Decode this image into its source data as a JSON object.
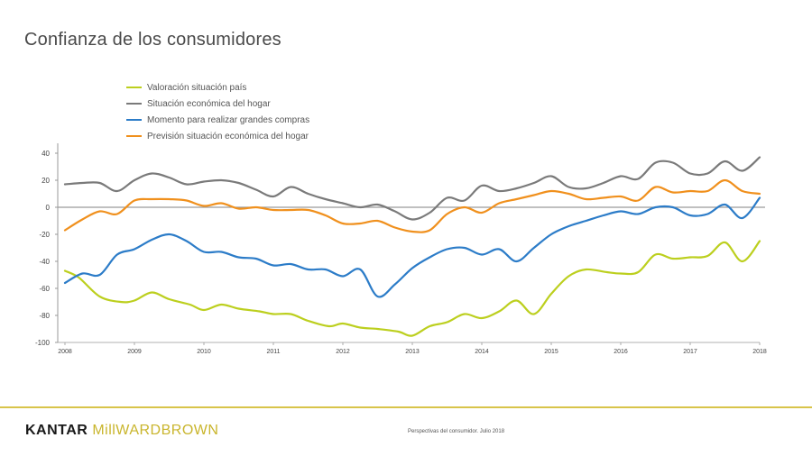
{
  "page": {
    "title": "Confianza de los consumidores"
  },
  "colors": {
    "series": [
      "#bccf1e",
      "#7a7a7a",
      "#2c7cc8",
      "#f0901d"
    ],
    "axis": "#999999",
    "tick_text": "#444444",
    "footer_line": "#d8c44a"
  },
  "chart_data": {
    "type": "line",
    "title": "Confianza de los consumidores",
    "xlabel": "",
    "ylabel": "",
    "xlim": [
      2008,
      2018
    ],
    "ylim": [
      -100,
      50
    ],
    "yticks": [
      -100,
      -80,
      -60,
      -40,
      -20,
      0,
      20,
      40
    ],
    "ytick_labels": [
      "-100",
      "-80",
      "-60",
      "-40",
      "-20",
      "0",
      "20",
      "40"
    ],
    "xticks": [
      2008,
      2009,
      2010,
      2011,
      2012,
      2013,
      2014,
      2015,
      2016,
      2017,
      2018
    ],
    "xtick_labels": [
      "2008",
      "2009",
      "2010",
      "2011",
      "2012",
      "2013",
      "2014",
      "2015",
      "2016",
      "2017",
      "2018"
    ],
    "legend_position": "top-left",
    "series": [
      {
        "name": "Valoración situación país",
        "x": [
          2008.0,
          2008.2,
          2008.5,
          2008.8,
          2009.0,
          2009.25,
          2009.5,
          2009.8,
          2010.0,
          2010.25,
          2010.5,
          2010.8,
          2011.0,
          2011.25,
          2011.5,
          2011.8,
          2012.0,
          2012.25,
          2012.5,
          2012.8,
          2013.0,
          2013.25,
          2013.5,
          2013.75,
          2014.0,
          2014.25,
          2014.5,
          2014.75,
          2015.0,
          2015.25,
          2015.5,
          2015.8,
          2016.0,
          2016.25,
          2016.5,
          2016.75,
          2017.0,
          2017.25,
          2017.5,
          2017.75,
          2018.0
        ],
        "values": [
          -47,
          -52,
          -66,
          -70,
          -69,
          -63,
          -68,
          -72,
          -76,
          -72,
          -75,
          -77,
          -79,
          -79,
          -84,
          -88,
          -86,
          -89,
          -90,
          -92,
          -95,
          -88,
          -85,
          -79,
          -82,
          -77,
          -69,
          -79,
          -64,
          -51,
          -46,
          -48,
          -49,
          -48,
          -35,
          -38,
          -37,
          -36,
          -26,
          -40,
          -25
        ]
      },
      {
        "name": "Situación económica del hogar",
        "x": [
          2008.0,
          2008.25,
          2008.5,
          2008.75,
          2009.0,
          2009.25,
          2009.5,
          2009.75,
          2010.0,
          2010.25,
          2010.5,
          2010.75,
          2011.0,
          2011.25,
          2011.5,
          2011.75,
          2012.0,
          2012.25,
          2012.5,
          2012.75,
          2013.0,
          2013.25,
          2013.5,
          2013.75,
          2014.0,
          2014.25,
          2014.5,
          2014.75,
          2015.0,
          2015.25,
          2015.5,
          2015.75,
          2016.0,
          2016.25,
          2016.5,
          2016.75,
          2017.0,
          2017.25,
          2017.5,
          2017.75,
          2018.0
        ],
        "values": [
          17,
          18,
          18,
          12,
          20,
          25,
          22,
          17,
          19,
          20,
          18,
          13,
          8,
          15,
          10,
          6,
          3,
          0,
          2,
          -3,
          -9,
          -4,
          7,
          5,
          16,
          12,
          14,
          18,
          23,
          15,
          14,
          18,
          23,
          21,
          33,
          33,
          25,
          25,
          34,
          27,
          37
        ]
      },
      {
        "name": "Momento para realizar grandes compras",
        "x": [
          2008.0,
          2008.25,
          2008.5,
          2008.75,
          2009.0,
          2009.25,
          2009.5,
          2009.75,
          2010.0,
          2010.25,
          2010.5,
          2010.75,
          2011.0,
          2011.25,
          2011.5,
          2011.75,
          2012.0,
          2012.25,
          2012.5,
          2012.75,
          2013.0,
          2013.25,
          2013.5,
          2013.75,
          2014.0,
          2014.25,
          2014.5,
          2014.75,
          2015.0,
          2015.25,
          2015.5,
          2015.75,
          2016.0,
          2016.25,
          2016.5,
          2016.75,
          2017.0,
          2017.25,
          2017.5,
          2017.75,
          2018.0
        ],
        "values": [
          -56,
          -49,
          -50,
          -35,
          -31,
          -24,
          -20,
          -25,
          -33,
          -33,
          -37,
          -38,
          -43,
          -42,
          -46,
          -46,
          -51,
          -46,
          -66,
          -57,
          -45,
          -37,
          -31,
          -30,
          -35,
          -31,
          -40,
          -30,
          -20,
          -14,
          -10,
          -6,
          -3,
          -5,
          0,
          0,
          -6,
          -5,
          2,
          -8,
          7
        ]
      },
      {
        "name": "Previsión situación económica del hogar",
        "x": [
          2008.0,
          2008.25,
          2008.5,
          2008.75,
          2009.0,
          2009.25,
          2009.5,
          2009.75,
          2010.0,
          2010.25,
          2010.5,
          2010.75,
          2011.0,
          2011.25,
          2011.5,
          2011.75,
          2012.0,
          2012.25,
          2012.5,
          2012.75,
          2013.0,
          2013.25,
          2013.5,
          2013.75,
          2014.0,
          2014.25,
          2014.5,
          2014.75,
          2015.0,
          2015.25,
          2015.5,
          2015.75,
          2016.0,
          2016.25,
          2016.5,
          2016.75,
          2017.0,
          2017.25,
          2017.5,
          2017.75,
          2018.0
        ],
        "values": [
          -17,
          -9,
          -3,
          -5,
          5,
          6,
          6,
          5,
          1,
          3,
          -1,
          0,
          -2,
          -2,
          -2,
          -6,
          -12,
          -12,
          -10,
          -15,
          -18,
          -17,
          -5,
          0,
          -4,
          3,
          6,
          9,
          12,
          10,
          6,
          7,
          8,
          5,
          15,
          11,
          12,
          12,
          20,
          12,
          10
        ]
      }
    ]
  },
  "footer": {
    "brand_left": "KANTAR",
    "brand_right": "MillWARDBROWN",
    "note": "Perspectivas del consumidor. Julio 2018"
  }
}
